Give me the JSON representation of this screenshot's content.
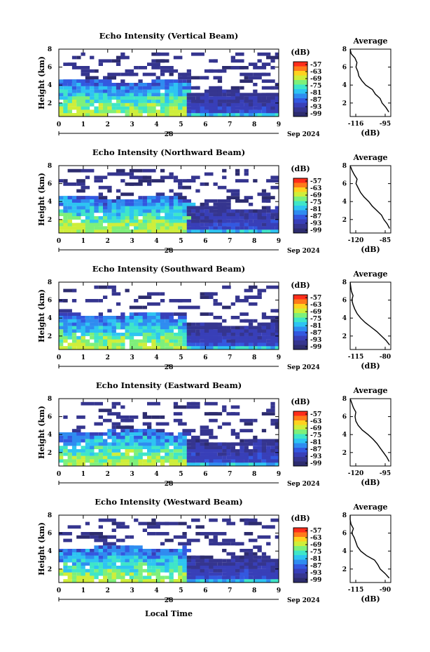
{
  "figure": {
    "xlabel": "Local Time",
    "day_label": "28",
    "date_suffix": "Sep 2024",
    "unit_label": "(dB)",
    "avg_title": "Average",
    "avg_xlabel": "(dB)",
    "colorbar_ticks": [
      "-57",
      "-63",
      "-69",
      "-75",
      "-81",
      "-87",
      "-93",
      "-99"
    ],
    "colorbar_colors": [
      "#ff2d1a",
      "#ff7a1a",
      "#ffd21f",
      "#cfee3a",
      "#7ef07a",
      "#3fe6c8",
      "#2ec4f2",
      "#2f8cf0",
      "#3358e0",
      "#383fb8",
      "#35358f",
      "#2d2c6e"
    ],
    "x_ticks": [
      "0",
      "1",
      "2",
      "3",
      "4",
      "5",
      "6",
      "7",
      "8",
      "9"
    ],
    "y_ticks": [
      "2",
      "4",
      "6",
      "8"
    ],
    "y_label": "Height (km)"
  },
  "chart_data": [
    {
      "type": "heatmap",
      "title": "Echo Intensity (Vertical Beam)",
      "xlabel": "Local Time",
      "ylabel": "Height (km)",
      "colorbar_label": "(dB)",
      "xlim": [
        0,
        9
      ],
      "ylim": [
        0.5,
        8
      ],
      "clim": [
        -99,
        -57
      ],
      "average_profile": {
        "title": "Average",
        "xlabel": "(dB)",
        "x_ticks": [
          "-116",
          "-95"
        ],
        "xlim": [
          -116,
          -95
        ],
        "points": [
          [
            -96.0,
            1.0
          ],
          [
            -97.5,
            1.5
          ],
          [
            -99.5,
            2.0
          ],
          [
            -100.5,
            2.5
          ],
          [
            -103.0,
            3.0
          ],
          [
            -104.5,
            3.5
          ],
          [
            -108.0,
            4.0
          ],
          [
            -110.0,
            4.5
          ],
          [
            -111.5,
            5.0
          ],
          [
            -112.0,
            5.5
          ],
          [
            -113.0,
            6.0
          ],
          [
            -112.5,
            6.5
          ],
          [
            -113.5,
            7.0
          ],
          [
            -115.5,
            7.5
          ],
          [
            -116.0,
            8.0
          ]
        ]
      }
    },
    {
      "type": "heatmap",
      "title": "Echo Intensity (Northward Beam)",
      "xlabel": "Local Time",
      "ylabel": "Height (km)",
      "colorbar_label": "(dB)",
      "xlim": [
        0,
        9
      ],
      "ylim": [
        0.5,
        8
      ],
      "clim": [
        -99,
        -57
      ],
      "average_profile": {
        "title": "Average",
        "xlabel": "(dB)",
        "x_ticks": [
          "-120",
          "-85"
        ],
        "xlim": [
          -120,
          -85
        ],
        "points": [
          [
            -86.0,
            1.0
          ],
          [
            -88.0,
            1.5
          ],
          [
            -91.0,
            2.0
          ],
          [
            -93.0,
            2.5
          ],
          [
            -97.0,
            3.0
          ],
          [
            -101.0,
            3.5
          ],
          [
            -104.0,
            4.0
          ],
          [
            -108.0,
            4.5
          ],
          [
            -111.0,
            5.0
          ],
          [
            -113.0,
            5.5
          ],
          [
            -115.0,
            6.0
          ],
          [
            -114.0,
            6.5
          ],
          [
            -116.5,
            7.0
          ],
          [
            -118.5,
            7.5
          ],
          [
            -120.0,
            8.0
          ]
        ]
      }
    },
    {
      "type": "heatmap",
      "title": "Echo Intensity (Southward Beam)",
      "xlabel": "Local Time",
      "ylabel": "Height (km)",
      "colorbar_label": "(dB)",
      "xlim": [
        0,
        9
      ],
      "ylim": [
        0.5,
        8
      ],
      "clim": [
        -99,
        -57
      ],
      "average_profile": {
        "title": "Average",
        "xlabel": "(dB)",
        "x_ticks": [
          "-115",
          "-80"
        ],
        "xlim": [
          -115,
          -80
        ],
        "points": [
          [
            -81.0,
            1.0
          ],
          [
            -84.0,
            1.5
          ],
          [
            -88.0,
            2.0
          ],
          [
            -92.0,
            2.5
          ],
          [
            -97.0,
            3.0
          ],
          [
            -102.0,
            3.5
          ],
          [
            -106.0,
            4.0
          ],
          [
            -109.0,
            4.5
          ],
          [
            -111.0,
            5.0
          ],
          [
            -112.5,
            5.5
          ],
          [
            -113.5,
            6.0
          ],
          [
            -112.5,
            6.5
          ],
          [
            -114.0,
            7.0
          ],
          [
            -114.5,
            7.5
          ],
          [
            -115.0,
            8.0
          ]
        ]
      }
    },
    {
      "type": "heatmap",
      "title": "Echo Intensity (Eastward Beam)",
      "xlabel": "Local Time",
      "ylabel": "Height (km)",
      "colorbar_label": "(dB)",
      "xlim": [
        0,
        9
      ],
      "ylim": [
        0.5,
        8
      ],
      "clim": [
        -99,
        -57
      ],
      "average_profile": {
        "title": "Average",
        "xlabel": "(dB)",
        "x_ticks": [
          "-120",
          "-95"
        ],
        "xlim": [
          -120,
          -95
        ],
        "points": [
          [
            -96.0,
            1.0
          ],
          [
            -97.5,
            1.5
          ],
          [
            -99.5,
            2.0
          ],
          [
            -101.5,
            2.5
          ],
          [
            -103.5,
            3.0
          ],
          [
            -106.0,
            3.5
          ],
          [
            -109.0,
            4.0
          ],
          [
            -112.5,
            4.5
          ],
          [
            -115.0,
            5.0
          ],
          [
            -116.5,
            5.5
          ],
          [
            -117.0,
            6.0
          ],
          [
            -116.5,
            6.5
          ],
          [
            -118.0,
            7.0
          ],
          [
            -119.0,
            7.5
          ],
          [
            -120.0,
            8.0
          ]
        ]
      }
    },
    {
      "type": "heatmap",
      "title": "Echo Intensity (Westward Beam)",
      "xlabel": "Local Time",
      "ylabel": "Height (km)",
      "colorbar_label": "(dB)",
      "xlim": [
        0,
        9
      ],
      "ylim": [
        0.5,
        8
      ],
      "clim": [
        -99,
        -57
      ],
      "average_profile": {
        "title": "Average",
        "xlabel": "(dB)",
        "x_ticks": [
          "-115",
          "-90"
        ],
        "xlim": [
          -115,
          -90
        ],
        "points": [
          [
            -91.0,
            1.0
          ],
          [
            -93.5,
            1.5
          ],
          [
            -96.5,
            2.0
          ],
          [
            -98.0,
            2.5
          ],
          [
            -100.0,
            3.0
          ],
          [
            -105.0,
            3.5
          ],
          [
            -108.5,
            4.0
          ],
          [
            -110.5,
            4.5
          ],
          [
            -111.5,
            5.0
          ],
          [
            -112.5,
            5.5
          ],
          [
            -114.0,
            6.0
          ],
          [
            -113.0,
            6.5
          ],
          [
            -114.5,
            7.0
          ],
          [
            -115.0,
            7.5
          ],
          [
            -115.0,
            8.0
          ]
        ]
      }
    }
  ]
}
